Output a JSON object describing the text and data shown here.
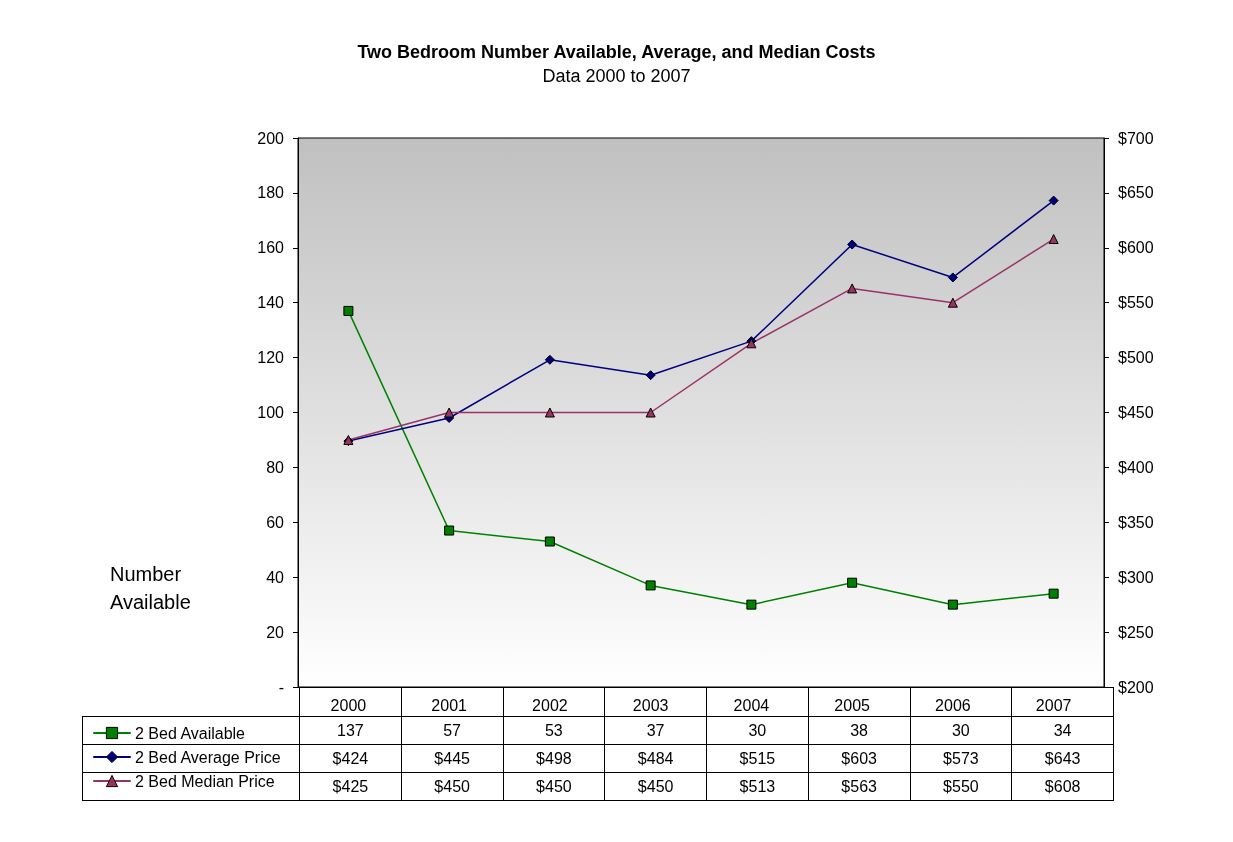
{
  "chart_data": {
    "type": "line",
    "title": "Two Bedroom Number Available, Average, and Median Costs",
    "subtitle": "Data 2000 to 2007",
    "ylabel": "Number Available",
    "categories": [
      "2000",
      "2001",
      "2002",
      "2003",
      "2004",
      "2005",
      "2006",
      "2007"
    ],
    "series": [
      {
        "name": "2 Bed Available",
        "color": "#008000",
        "marker": "square",
        "values": [
          137,
          57,
          53,
          37,
          30,
          38,
          30,
          34
        ],
        "value_labels": [
          "137",
          "57",
          "53",
          "37",
          "30",
          "38",
          "30",
          "34"
        ]
      },
      {
        "name": "2 Bed Average Price",
        "color": "#000080",
        "marker": "diamond",
        "axis": "y2",
        "values": [
          424,
          445,
          498,
          484,
          515,
          603,
          573,
          643
        ],
        "value_labels": [
          "$424",
          "$445",
          "$498",
          "$484",
          "$515",
          "$603",
          "$573",
          "$643"
        ]
      },
      {
        "name": "2 Bed Median Price",
        "color": "#993366",
        "marker": "triangle",
        "axis": "y2",
        "values": [
          425,
          450,
          450,
          450,
          513,
          563,
          550,
          608
        ],
        "value_labels": [
          "$425",
          "$450",
          "$450",
          "$450",
          "$513",
          "$563",
          "$550",
          "$608"
        ]
      }
    ],
    "ylim": [
      0,
      200
    ],
    "yticks": [
      {
        "value": 0,
        "label": "-"
      },
      20,
      40,
      60,
      80,
      100,
      120,
      140,
      160,
      180,
      200
    ],
    "y2lim": [
      200,
      700
    ],
    "y2ticks": [
      {
        "value": 200,
        "label": "$200"
      },
      {
        "value": 250,
        "label": "$250"
      },
      {
        "value": 300,
        "label": "$300"
      },
      {
        "value": 350,
        "label": "$350"
      },
      {
        "value": 400,
        "label": "$400"
      },
      {
        "value": 450,
        "label": "$450"
      },
      {
        "value": 500,
        "label": "$500"
      },
      {
        "value": 550,
        "label": "$550"
      },
      {
        "value": 600,
        "label": "$600"
      },
      {
        "value": 650,
        "label": "$650"
      },
      {
        "value": 700,
        "label": "$700"
      }
    ],
    "grid": false,
    "legend": "bottom left",
    "line_style": "solid"
  }
}
